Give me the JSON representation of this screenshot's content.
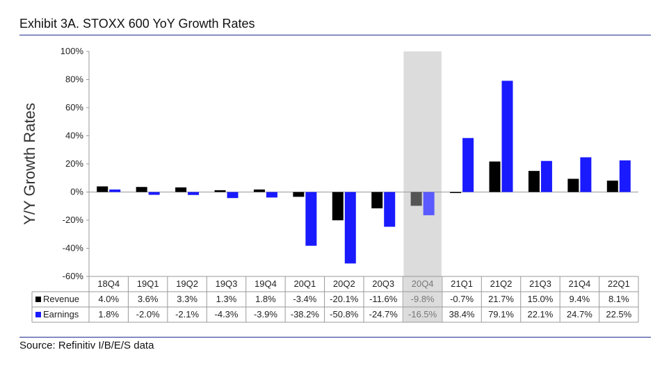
{
  "header": {
    "title": "Exhibit 3A.  STOXX 600 YoY Growth Rates"
  },
  "footer": {
    "source": "Source: Refinitiv I/B/E/S data"
  },
  "chart_data": {
    "type": "bar",
    "title": "Exhibit 3A.  STOXX 600 YoY Growth Rates",
    "ylabel": "Y/Y Growth Rates",
    "xlabel": "",
    "ylim": [
      -60,
      100
    ],
    "y_ticks": [
      "100%",
      "80%",
      "60%",
      "40%",
      "20%",
      "0%",
      "-20%",
      "-40%",
      "-60%"
    ],
    "y_tick_values": [
      100,
      80,
      60,
      40,
      20,
      0,
      -20,
      -40,
      -60
    ],
    "grid": false,
    "legend": "table-below",
    "highlighted_category": "20Q4",
    "categories": [
      "18Q4",
      "19Q1",
      "19Q2",
      "19Q3",
      "19Q4",
      "20Q1",
      "20Q2",
      "20Q3",
      "20Q4",
      "21Q1",
      "21Q2",
      "21Q3",
      "21Q4",
      "22Q1"
    ],
    "series": [
      {
        "name": "Revenue",
        "color": "#000000",
        "highlight_color": "#555555",
        "values": [
          4.0,
          3.6,
          3.3,
          1.3,
          1.8,
          -3.4,
          -20.1,
          -11.6,
          -9.8,
          -0.7,
          21.7,
          15.0,
          9.4,
          8.1
        ],
        "labels": [
          "4.0%",
          "3.6%",
          "3.3%",
          "1.3%",
          "1.8%",
          "-3.4%",
          "-20.1%",
          "-11.6%",
          "-9.8%",
          "-0.7%",
          "21.7%",
          "15.0%",
          "9.4%",
          "8.1%"
        ]
      },
      {
        "name": "Earnings",
        "color": "#1a1aff",
        "highlight_color": "#5a5aff",
        "values": [
          1.8,
          -2.0,
          -2.1,
          -4.3,
          -3.9,
          -38.2,
          -50.8,
          -24.7,
          -16.5,
          38.4,
          79.1,
          22.1,
          24.7,
          22.5
        ],
        "labels": [
          "1.8%",
          "-2.0%",
          "-2.1%",
          "-4.3%",
          "-3.9%",
          "-38.2%",
          "-50.8%",
          "-24.7%",
          "-16.5%",
          "38.4%",
          "79.1%",
          "22.1%",
          "24.7%",
          "22.5%"
        ]
      }
    ]
  }
}
